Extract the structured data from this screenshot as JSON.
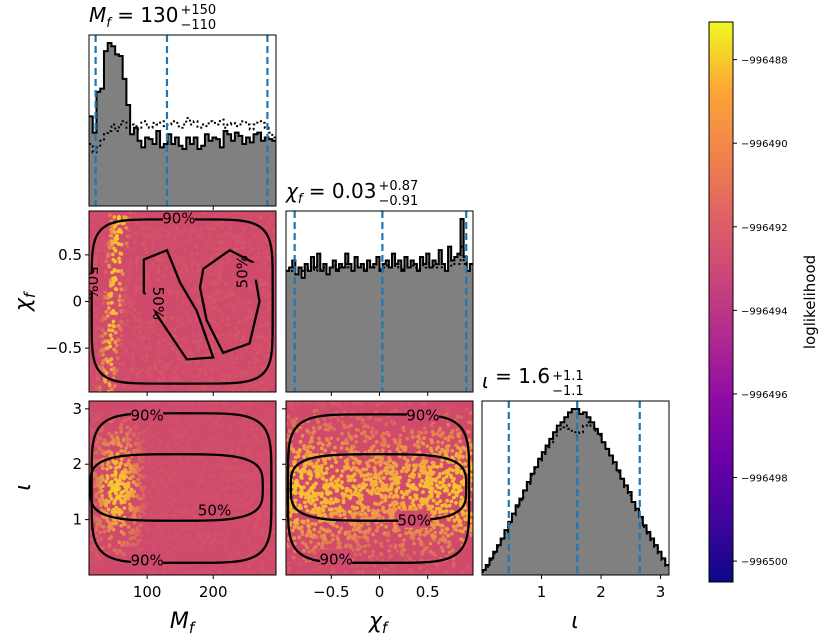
{
  "chart_data": {
    "type": "corner",
    "parameters": [
      {
        "key": "Mf",
        "label": "M_f",
        "range": [
          12,
          295
        ],
        "ticks": [
          100,
          200
        ],
        "summary": {
          "median": 130,
          "upper_err": 150,
          "lower_err": 110,
          "text": "130",
          "sup": "+150",
          "sub": "−110"
        },
        "quantiles": [
          22,
          130,
          282
        ],
        "hist_solid": [
          0.55,
          0.45,
          0.7,
          0.72,
          0.95,
          1.0,
          0.98,
          0.93,
          0.92,
          0.78,
          0.62,
          0.44,
          0.48,
          0.4,
          0.36,
          0.42,
          0.41,
          0.38,
          0.46,
          0.36,
          0.38,
          0.44,
          0.38,
          0.42,
          0.37,
          0.35,
          0.42,
          0.38,
          0.42,
          0.35,
          0.37,
          0.44,
          0.4,
          0.42,
          0.41,
          0.36,
          0.46,
          0.44,
          0.4,
          0.45,
          0.43,
          0.38,
          0.42,
          0.39,
          0.44,
          0.45,
          0.4,
          0.42,
          0.41,
          0.4
        ],
        "hist_dotted": [
          0.38,
          0.33,
          0.36,
          0.4,
          0.44,
          0.46,
          0.5,
          0.46,
          0.5,
          0.52,
          0.48,
          0.5,
          0.49,
          0.47,
          0.52,
          0.5,
          0.48,
          0.51,
          0.5,
          0.52,
          0.49,
          0.5,
          0.52,
          0.51,
          0.48,
          0.5,
          0.54,
          0.5,
          0.52,
          0.48,
          0.5,
          0.49,
          0.52,
          0.51,
          0.5,
          0.53,
          0.48,
          0.5,
          0.51,
          0.49,
          0.5,
          0.52,
          0.5,
          0.47,
          0.5,
          0.52,
          0.51,
          0.48,
          0.45,
          0.42
        ]
      },
      {
        "key": "chif",
        "label": "χ_f",
        "range": [
          -0.97,
          0.97
        ],
        "ticks": [
          -0.5,
          0.0,
          0.5
        ],
        "summary": {
          "median": 0.03,
          "upper_err": 0.87,
          "lower_err": 0.91,
          "text": "0.03",
          "sup": "+0.87",
          "sub": "−0.91"
        },
        "quantiles": [
          -0.88,
          0.03,
          0.9
        ],
        "hist_solid": [
          0.7,
          0.72,
          0.76,
          0.68,
          0.72,
          0.66,
          0.74,
          0.7,
          0.78,
          0.72,
          0.8,
          0.7,
          0.74,
          0.68,
          0.72,
          0.76,
          0.7,
          0.74,
          0.72,
          0.8,
          0.74,
          0.7,
          0.78,
          0.72,
          0.74,
          0.7,
          0.76,
          0.72,
          0.74,
          0.78,
          0.7,
          0.74,
          0.76,
          0.72,
          0.8,
          0.74,
          0.76,
          0.7,
          0.78,
          0.72,
          0.76,
          0.74,
          0.7,
          0.78,
          0.74,
          0.8,
          0.72,
          0.76,
          0.74,
          0.82,
          0.74,
          0.7,
          0.84,
          0.76,
          0.78,
          0.8,
          1.0,
          0.78,
          0.7,
          0.74
        ],
        "hist_dotted": [
          0.7,
          0.7,
          0.72,
          0.7,
          0.72,
          0.7,
          0.72,
          0.71,
          0.72,
          0.7,
          0.74,
          0.71,
          0.72,
          0.7,
          0.72,
          0.73,
          0.71,
          0.72,
          0.72,
          0.74,
          0.72,
          0.71,
          0.73,
          0.72,
          0.72,
          0.71,
          0.73,
          0.72,
          0.72,
          0.74,
          0.71,
          0.72,
          0.73,
          0.72,
          0.74,
          0.72,
          0.73,
          0.71,
          0.74,
          0.72,
          0.73,
          0.72,
          0.71,
          0.74,
          0.72,
          0.75,
          0.72,
          0.73,
          0.72,
          0.75,
          0.72,
          0.71,
          0.76,
          0.73,
          0.74,
          0.74,
          0.84,
          0.74,
          0.7,
          0.72
        ]
      },
      {
        "key": "iota",
        "label": "ι",
        "range": [
          0,
          3.14159
        ],
        "ticks": [
          1,
          2,
          3
        ],
        "summary": {
          "median": 1.6,
          "upper_err": 1.1,
          "lower_err": 1.1,
          "text": "1.6",
          "sup": "+1.1",
          "sub": "−1.1"
        },
        "quantiles": [
          0.45,
          1.6,
          2.65
        ],
        "hist_solid": [
          0.03,
          0.06,
          0.1,
          0.14,
          0.18,
          0.22,
          0.27,
          0.32,
          0.37,
          0.42,
          0.46,
          0.51,
          0.56,
          0.61,
          0.65,
          0.7,
          0.74,
          0.78,
          0.82,
          0.86,
          0.9,
          0.92,
          0.95,
          0.98,
          1.0,
          1.0,
          0.97,
          0.98,
          0.95,
          0.92,
          0.88,
          0.85,
          0.8,
          0.76,
          0.72,
          0.68,
          0.63,
          0.58,
          0.54,
          0.5,
          0.44,
          0.4,
          0.35,
          0.3,
          0.26,
          0.22,
          0.18,
          0.14,
          0.1,
          0.06
        ],
        "hist_dotted": [
          0.02,
          0.05,
          0.09,
          0.13,
          0.17,
          0.21,
          0.26,
          0.31,
          0.36,
          0.41,
          0.45,
          0.5,
          0.55,
          0.6,
          0.64,
          0.69,
          0.73,
          0.77,
          0.8,
          0.84,
          0.87,
          0.89,
          0.9,
          0.88,
          0.86,
          0.84,
          0.86,
          0.9,
          0.92,
          0.9,
          0.87,
          0.84,
          0.8,
          0.76,
          0.72,
          0.67,
          0.62,
          0.58,
          0.53,
          0.48,
          0.44,
          0.39,
          0.34,
          0.29,
          0.25,
          0.21,
          0.17,
          0.13,
          0.09,
          0.05
        ]
      }
    ],
    "contour_levels": [
      "50%",
      "90%"
    ],
    "colorbar": {
      "label": "loglikelihood",
      "colormap": "plasma",
      "range": [
        -996500.5,
        -996487.1
      ],
      "ticks": [
        -996488,
        -996490,
        -996492,
        -996494,
        -996496,
        -996498,
        -996500
      ],
      "tick_labels": [
        "−996488",
        "−996490",
        "−996492",
        "−996494",
        "−996496",
        "−996498",
        "−996500"
      ]
    },
    "colors": {
      "quantile_line": "#1f77b4",
      "hist_fill": "#808080",
      "scatter_base": "#d04a6c",
      "scatter_hot": "#f5b33a"
    }
  }
}
